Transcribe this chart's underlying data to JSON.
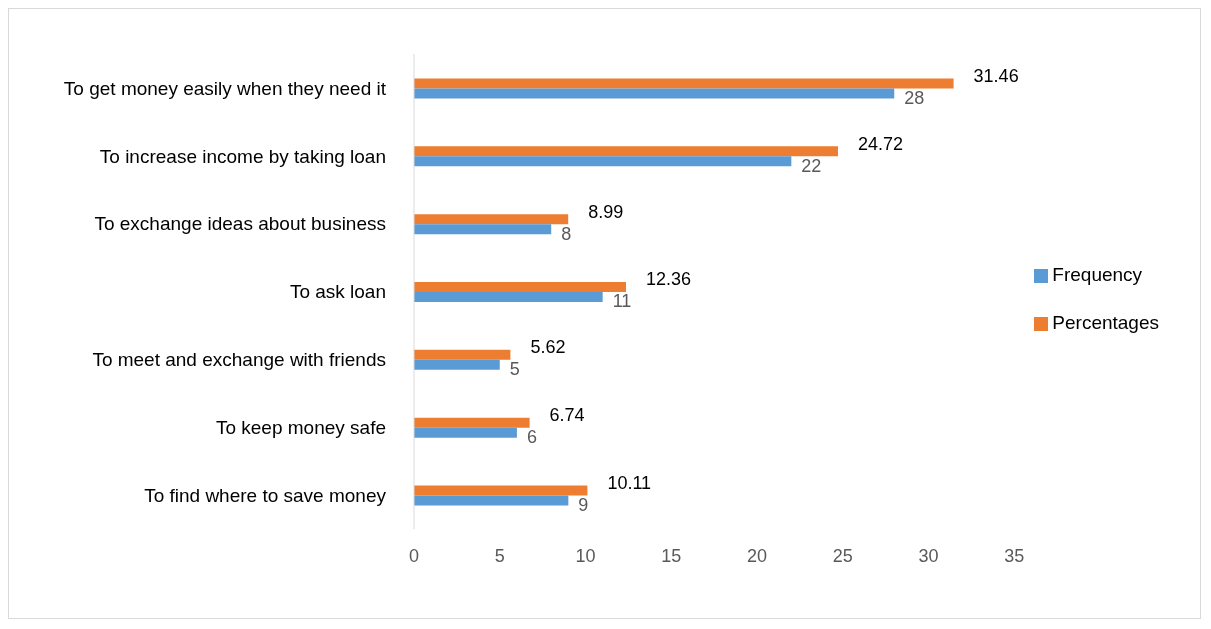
{
  "chart_data": {
    "type": "bar",
    "orientation": "horizontal",
    "categories": [
      "To get money easily when they need it",
      "To increase income by taking loan",
      "To exchange ideas about business",
      "To ask loan",
      "To meet and exchange with friends",
      "To keep money safe",
      "To find where to save money"
    ],
    "series": [
      {
        "name": "Percentages",
        "color": "#ed7d31",
        "values": [
          31.46,
          24.72,
          8.99,
          12.36,
          5.62,
          6.74,
          10.11
        ]
      },
      {
        "name": "Frequency",
        "color": "#5b9bd5",
        "values": [
          28,
          22,
          8,
          11,
          5,
          6,
          9
        ]
      }
    ],
    "xlim": [
      0,
      35
    ],
    "xticks": [
      0,
      5,
      10,
      15,
      20,
      25,
      30,
      35
    ],
    "grid": false,
    "legend": "right",
    "data_labels": true
  }
}
